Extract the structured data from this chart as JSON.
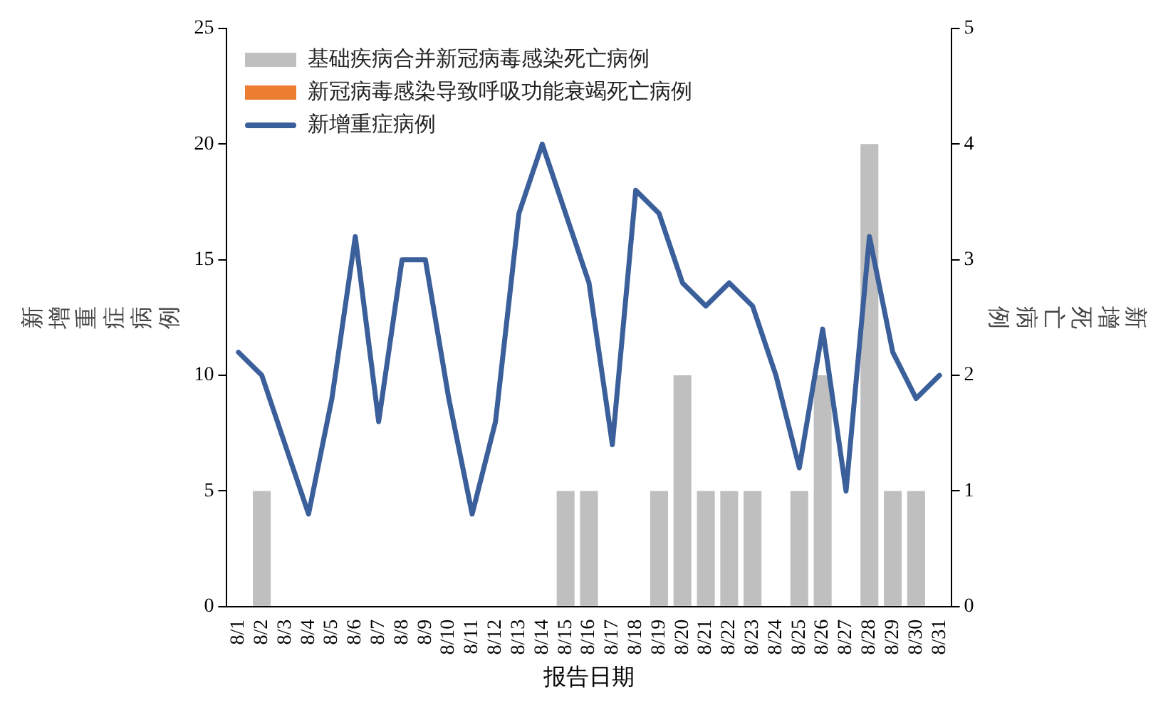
{
  "chart_data": {
    "type": "bar",
    "xlabel": "报告日期",
    "ylabel": "新增重症病例",
    "y2label": "新增死亡病例",
    "categories": [
      "8/1",
      "8/2",
      "8/3",
      "8/4",
      "8/5",
      "8/6",
      "8/7",
      "8/8",
      "8/9",
      "8/10",
      "8/11",
      "8/12",
      "8/13",
      "8/14",
      "8/15",
      "8/16",
      "8/17",
      "8/18",
      "8/19",
      "8/20",
      "8/21",
      "8/22",
      "8/23",
      "8/24",
      "8/25",
      "8/26",
      "8/27",
      "8/28",
      "8/29",
      "8/30",
      "8/31"
    ],
    "stacked": true,
    "series": [
      {
        "name": "基础疾病合并新冠病毒感染死亡病例",
        "color": "#bfbfbf",
        "axis": "y2",
        "values": [
          0,
          1,
          0,
          0,
          0,
          0,
          0,
          0,
          0,
          0,
          0,
          0,
          0,
          0,
          1,
          1,
          0,
          0,
          1,
          2,
          1,
          1,
          1,
          0,
          1,
          2,
          0,
          4,
          1,
          1,
          0
        ]
      },
      {
        "name": "新冠病毒感染导致呼吸功能衰竭死亡病例",
        "color": "#ed7d31",
        "axis": "y2",
        "values": [
          0,
          0,
          0,
          0,
          0,
          0,
          0,
          0,
          0,
          0,
          0,
          0,
          0,
          0,
          0,
          0,
          0,
          0,
          0,
          0,
          0,
          0,
          0,
          0,
          0,
          0,
          0,
          0,
          0,
          0,
          0
        ]
      },
      {
        "name": "新增重症病例",
        "color": "#3a5f9a",
        "type": "line",
        "values": [
          11,
          10,
          7,
          4,
          9,
          16,
          8,
          15,
          15,
          9,
          4,
          8,
          17,
          20,
          17,
          14,
          7,
          18,
          17,
          14,
          13,
          14,
          13,
          10,
          6,
          12,
          5,
          16,
          11,
          9,
          10
        ]
      }
    ],
    "ylim": [
      0,
      25
    ],
    "yticks": [
      0,
      5,
      10,
      15,
      20,
      25
    ],
    "y2lim": [
      0,
      5
    ],
    "y2ticks": [
      0,
      1,
      2,
      3,
      4,
      5
    ],
    "grid": false,
    "legend": "top left",
    "marker": "none"
  }
}
